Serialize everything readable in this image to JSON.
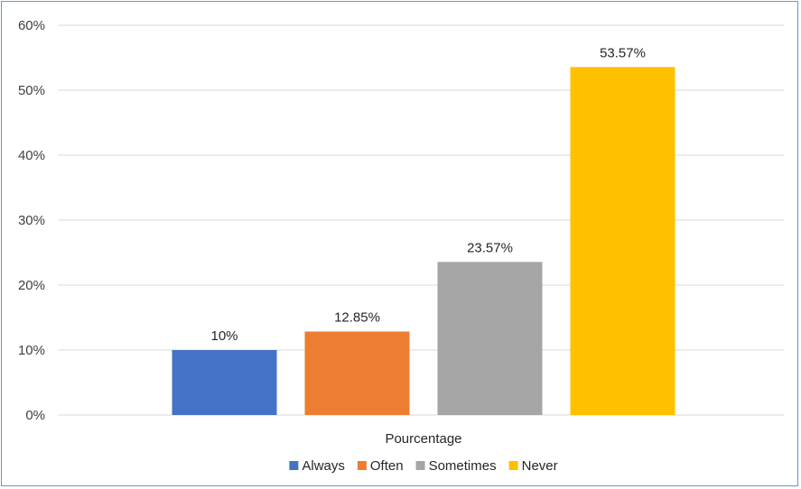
{
  "chart_data": {
    "type": "bar",
    "categories": [
      "Pourcentage"
    ],
    "series": [
      {
        "name": "Always",
        "values": [
          10
        ],
        "label": "10%",
        "color": "#4472c4"
      },
      {
        "name": "Often",
        "values": [
          12.85
        ],
        "label": "12.85%",
        "color": "#ed7d31"
      },
      {
        "name": "Sometimes",
        "values": [
          23.57
        ],
        "label": "23.57%",
        "color": "#a5a5a5"
      },
      {
        "name": "Never",
        "values": [
          53.57
        ],
        "label": "53.57%",
        "color": "#ffc000"
      }
    ],
    "ylim": [
      0,
      60
    ],
    "yticks": [
      "0%",
      "10%",
      "20%",
      "30%",
      "40%",
      "50%",
      "60%"
    ],
    "grid": true,
    "legend": "bottom"
  }
}
